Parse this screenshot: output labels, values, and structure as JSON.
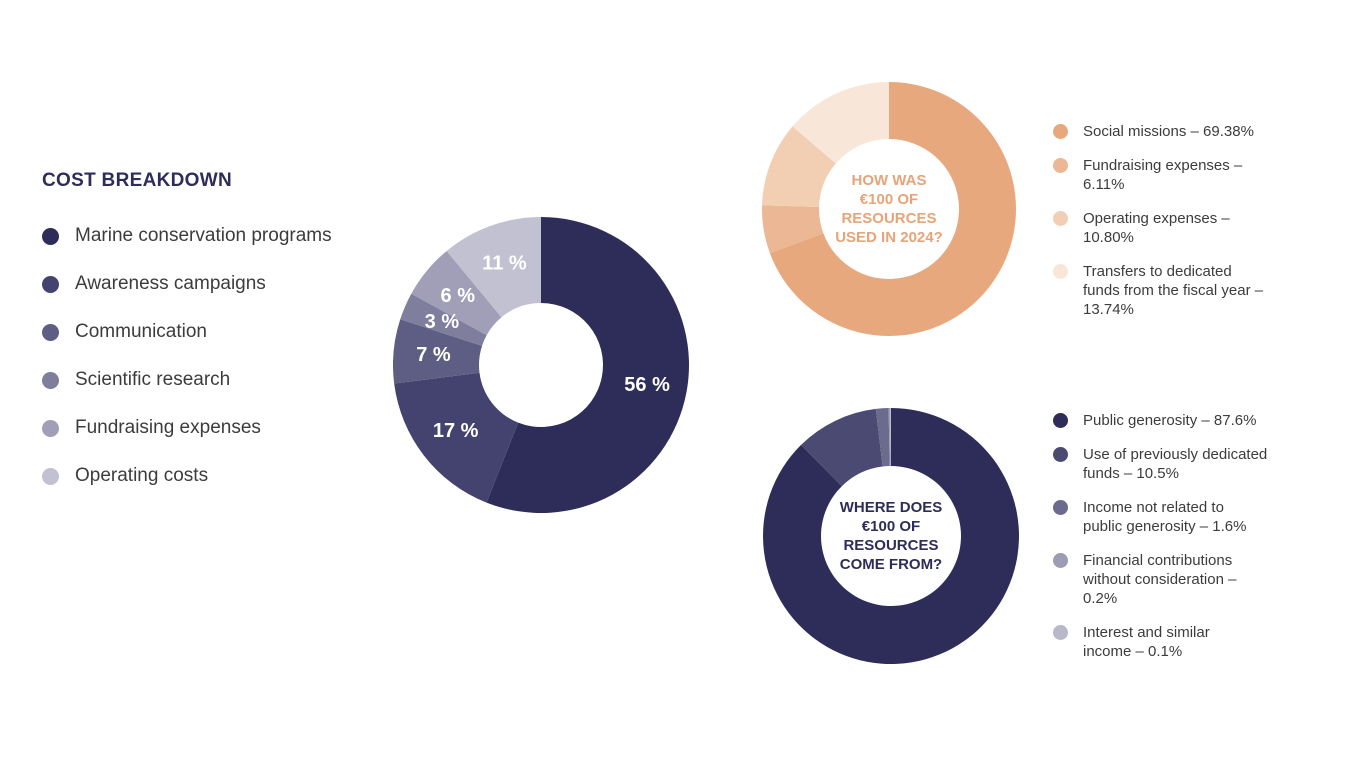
{
  "page": {
    "background_color": "#ffffff",
    "text_color": "#3c3c3c"
  },
  "chart_data": [
    {
      "id": "cost-breakdown",
      "type": "pie",
      "subtype": "donut",
      "title": "COST BREAKDOWN",
      "title_color": "#2e2d59",
      "categories": [
        "Marine conservation programs",
        "Awareness campaigns",
        "Communication",
        "Scientific research",
        "Fundraising expenses",
        "Operating costs"
      ],
      "values": [
        56,
        17,
        7,
        3,
        6,
        11
      ],
      "unit": "percent",
      "slice_labels": [
        "56 %",
        "17 %",
        "7 %",
        "3 %",
        "6 %",
        "11 %"
      ],
      "colors": [
        "#2e2d59",
        "#444370",
        "#5e5d84",
        "#7f7e9d",
        "#a09fb7",
        "#c2c1d2"
      ],
      "slice_label_color": "#ffffff",
      "start_angle_deg": 0,
      "direction": "clockwise",
      "legend_position": "left",
      "legend": [
        {
          "text": "Marine conservation programs",
          "color": "#2e2d59"
        },
        {
          "text": "Awareness campaigns",
          "color": "#444370"
        },
        {
          "text": "Communication",
          "color": "#5e5d84"
        },
        {
          "text": "Scientific research",
          "color": "#7f7e9d"
        },
        {
          "text": "Fundraising expenses",
          "color": "#a09fb7"
        },
        {
          "text": "Operating costs",
          "color": "#c2c1d2"
        }
      ]
    },
    {
      "id": "resources-used-2024",
      "type": "pie",
      "subtype": "donut",
      "center_title": "HOW WAS\n€100 OF\nRESOURCES\nUSED IN 2024?",
      "center_title_color": "#e7a478",
      "categories": [
        "Social missions",
        "Fundraising expenses",
        "Operating expenses",
        "Transfers to dedicated funds from the fiscal year"
      ],
      "values": [
        69.38,
        6.11,
        10.8,
        13.74
      ],
      "unit": "percent",
      "colors": [
        "#e8a87e",
        "#ebb795",
        "#f2cfb3",
        "#f8e7d9"
      ],
      "start_angle_deg": 0,
      "direction": "clockwise",
      "legend_position": "right",
      "legend": [
        {
          "text": "Social missions – 69.38%",
          "color": "#e8a87e"
        },
        {
          "text": "Fundraising expenses –\n6.11%",
          "color": "#ebb795"
        },
        {
          "text": "Operating expenses –\n10.80%",
          "color": "#f2cfb3"
        },
        {
          "text": "Transfers to dedicated\nfunds from the fiscal year –\n13.74%",
          "color": "#f8e7d9"
        }
      ]
    },
    {
      "id": "resources-origin",
      "type": "pie",
      "subtype": "donut",
      "center_title": "WHERE DOES\n€100 OF\nRESOURCES\nCOME FROM?",
      "center_title_color": "#2e2d59",
      "categories": [
        "Public generosity",
        "Use of previously dedicated funds",
        "Income not related to public generosity",
        "Financial contributions without consideration",
        "Interest and similar income"
      ],
      "values": [
        87.6,
        10.5,
        1.6,
        0.2,
        0.1
      ],
      "unit": "percent",
      "colors": [
        "#2e2d59",
        "#4b4a73",
        "#6c6b8d",
        "#9d9cb3",
        "#b9b8c9"
      ],
      "start_angle_deg": 0,
      "direction": "clockwise",
      "legend_position": "right",
      "legend": [
        {
          "text": "Public generosity – 87.6%",
          "color": "#2e2d59"
        },
        {
          "text": "Use of previously dedicated\nfunds – 10.5%",
          "color": "#4b4a73"
        },
        {
          "text": "Income not related to\npublic generosity – 1.6%",
          "color": "#6c6b8d"
        },
        {
          "text": "Financial contributions\nwithout consideration –\n0.2%",
          "color": "#9d9cb3"
        },
        {
          "text": "Interest and similar\nincome – 0.1%",
          "color": "#b9b8c9"
        }
      ]
    }
  ]
}
